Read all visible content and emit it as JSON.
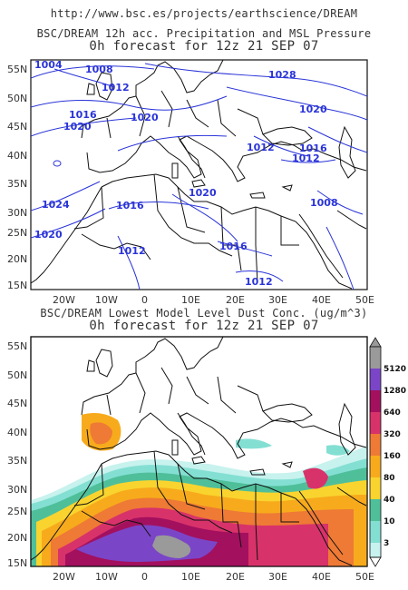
{
  "header": {
    "url": "http://www.bsc.es/projects/earthscience/DREAM"
  },
  "top_map": {
    "title": "BSC/DREAM 12h acc. Precipitation and MSL Pressure",
    "subtitle": "0h forecast for 12z 21 SEP 07",
    "isobar_labels": [
      "1004",
      "1008",
      "1012",
      "1028",
      "1016",
      "1020",
      "1020",
      "1020",
      "1024",
      "1020",
      "1016",
      "1012",
      "1020",
      "1016",
      "1012",
      "1008",
      "1016",
      "1012",
      "1012"
    ]
  },
  "bottom_map": {
    "title": "BSC/DREAM Lowest Model Level Dust Conc. (ug/m^3)",
    "subtitle": "0h forecast for 12z 21 SEP 07"
  },
  "axes": {
    "lat_labels": [
      "55N",
      "50N",
      "45N",
      "40N",
      "35N",
      "30N",
      "25N",
      "20N",
      "15N"
    ],
    "lon_labels": [
      "20W",
      "10W",
      "0",
      "10E",
      "20E",
      "30E",
      "40E",
      "50E"
    ]
  },
  "legend": {
    "levels": [
      "5120",
      "1280",
      "640",
      "320",
      "160",
      "80",
      "40",
      "10",
      "3"
    ],
    "colors": [
      "#9a9a9a",
      "#7b45c8",
      "#a3105e",
      "#d8326a",
      "#ee7a35",
      "#f7ab1c",
      "#f9d42e",
      "#4fbf9a",
      "#84dfd3",
      "#c7f2ee"
    ]
  },
  "map_colors": {
    "isobar": "#2a34d8",
    "coast": "#111111"
  }
}
